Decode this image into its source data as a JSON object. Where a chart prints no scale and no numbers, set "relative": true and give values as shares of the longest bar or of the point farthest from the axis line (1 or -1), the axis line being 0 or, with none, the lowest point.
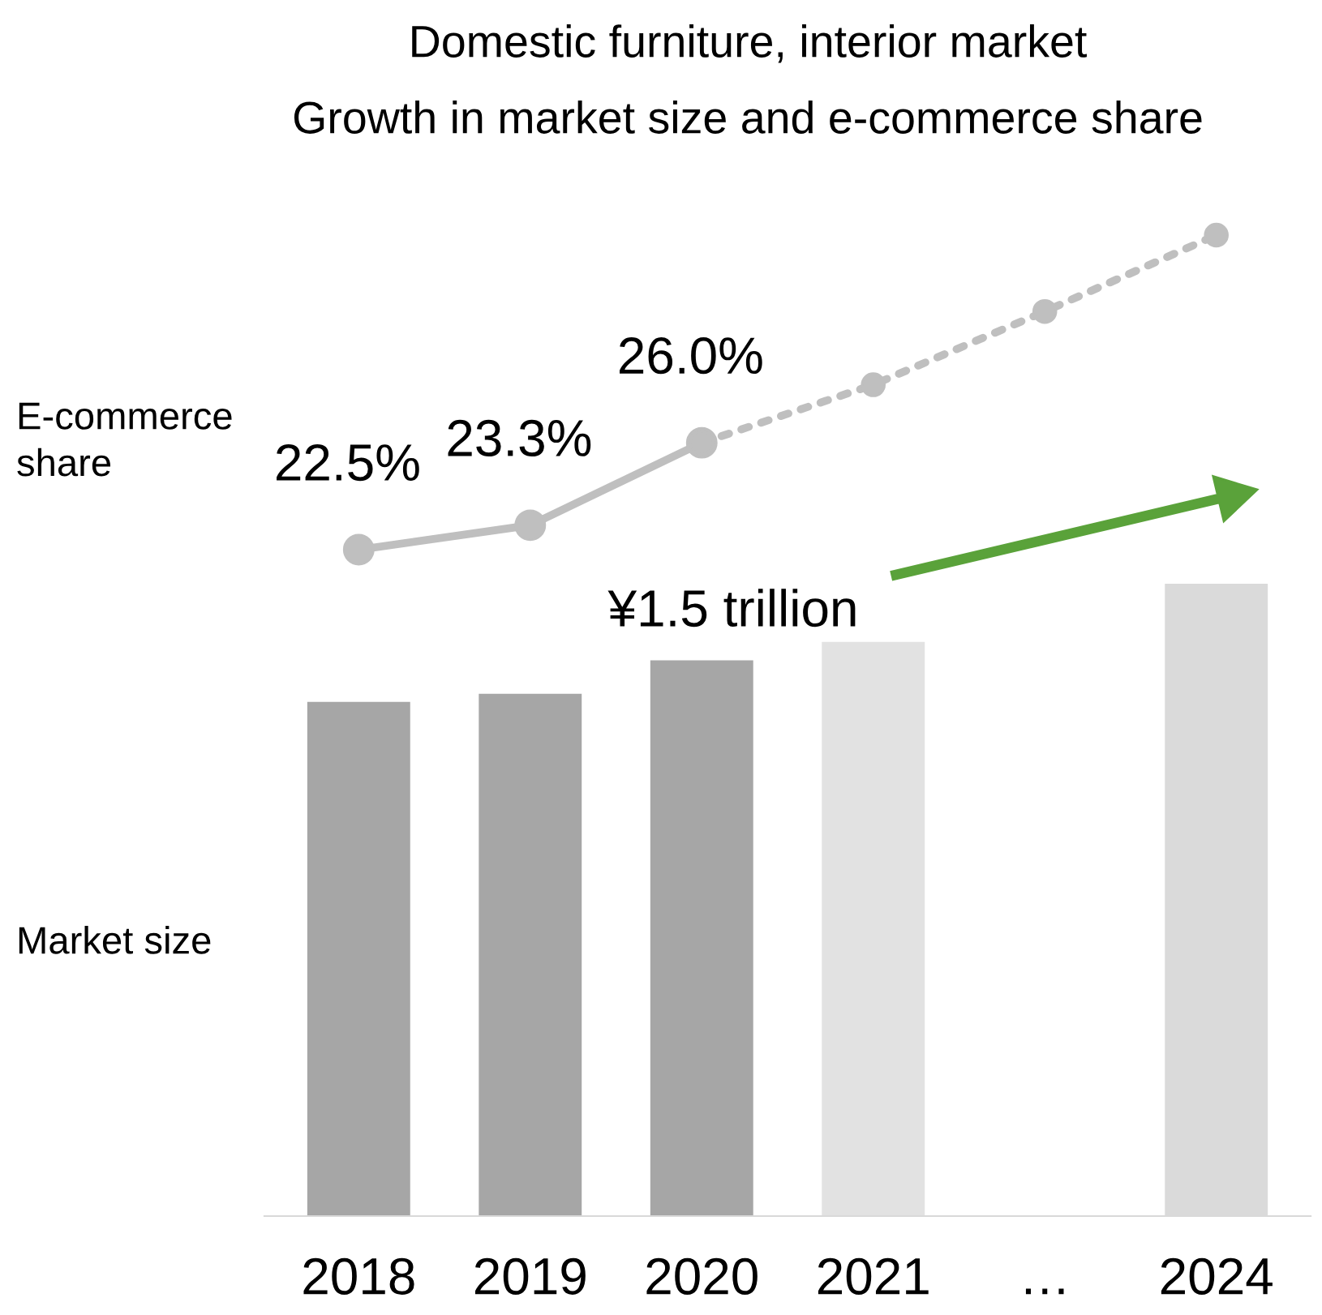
{
  "chart_data": [
    {
      "type": "line",
      "title": "Domestic furniture, interior market",
      "subtitle": "Growth in market size and e-commerce share",
      "categories": [
        null,
        null,
        null,
        null,
        null,
        null
      ],
      "series": [
        {
          "color": "#bfbfbf",
          "line_style": "solid",
          "values": [
            22.5,
            23.3,
            26.0,
            null,
            null,
            null
          ],
          "value_labels": [
            "22.5%",
            "23.3%",
            "26.0%",
            null,
            null,
            null
          ]
        },
        {
          "color": "#bfbfbf",
          "line_style": "dotted",
          "values": [
            null,
            null,
            26.0,
            27.9,
            30.3,
            32.8
          ]
        }
      ],
      "marker": "circle",
      "tick_labels": false,
      "annotations": [
        "E-commerce\nshare"
      ]
    },
    {
      "type": "bar",
      "categories": [
        "2018",
        "2019",
        "2020",
        "2021",
        "…",
        "2024"
      ],
      "relative": true,
      "colors": [
        "#a6a6a6",
        "#a6a6a6",
        "#a6a6a6",
        "#e2e2e2",
        "#ffffff",
        "#dadada"
      ],
      "values": [
        0.813,
        0.826,
        0.879,
        0.908,
        null,
        1
      ],
      "annotations": [
        "¥1.5 trillion",
        "Market size"
      ]
    }
  ]
}
